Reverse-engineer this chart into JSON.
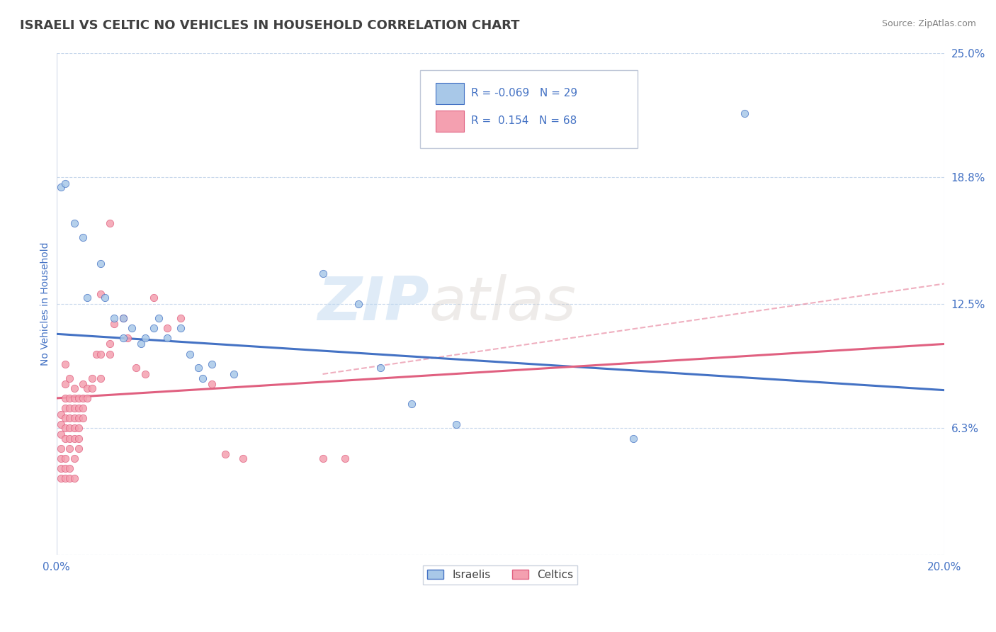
{
  "title": "ISRAELI VS CELTIC NO VEHICLES IN HOUSEHOLD CORRELATION CHART",
  "source": "Source: ZipAtlas.com",
  "ylabel": "No Vehicles in Household",
  "xlim": [
    0.0,
    0.2
  ],
  "ylim": [
    0.0,
    0.25
  ],
  "ytick_values": [
    0.0,
    0.063,
    0.125,
    0.188,
    0.25
  ],
  "ytick_labels": [
    "",
    "6.3%",
    "12.5%",
    "18.8%",
    "25.0%"
  ],
  "legend_r_israeli": "-0.069",
  "legend_n_israeli": "29",
  "legend_r_celtic": "0.154",
  "legend_n_celtic": "68",
  "israeli_color": "#a8c8e8",
  "celtic_color": "#f4a0b0",
  "israeli_line_color": "#4472c4",
  "celtic_line_color": "#e06080",
  "title_color": "#404040",
  "axis_label_color": "#4472c4",
  "tick_label_color": "#4472c4",
  "source_color": "#808080",
  "watermark_zip": "ZIP",
  "watermark_atlas": "atlas",
  "background_color": "#ffffff",
  "israelis_scatter": [
    [
      0.001,
      0.183
    ],
    [
      0.002,
      0.185
    ],
    [
      0.004,
      0.165
    ],
    [
      0.006,
      0.158
    ],
    [
      0.007,
      0.128
    ],
    [
      0.01,
      0.145
    ],
    [
      0.011,
      0.128
    ],
    [
      0.013,
      0.118
    ],
    [
      0.015,
      0.118
    ],
    [
      0.015,
      0.108
    ],
    [
      0.017,
      0.113
    ],
    [
      0.019,
      0.105
    ],
    [
      0.02,
      0.108
    ],
    [
      0.022,
      0.113
    ],
    [
      0.023,
      0.118
    ],
    [
      0.025,
      0.108
    ],
    [
      0.028,
      0.113
    ],
    [
      0.03,
      0.1
    ],
    [
      0.032,
      0.093
    ],
    [
      0.033,
      0.088
    ],
    [
      0.035,
      0.095
    ],
    [
      0.04,
      0.09
    ],
    [
      0.06,
      0.14
    ],
    [
      0.068,
      0.125
    ],
    [
      0.073,
      0.093
    ],
    [
      0.08,
      0.075
    ],
    [
      0.09,
      0.065
    ],
    [
      0.13,
      0.058
    ],
    [
      0.155,
      0.22
    ]
  ],
  "celtics_scatter": [
    [
      0.001,
      0.07
    ],
    [
      0.001,
      0.065
    ],
    [
      0.001,
      0.06
    ],
    [
      0.001,
      0.053
    ],
    [
      0.001,
      0.048
    ],
    [
      0.001,
      0.043
    ],
    [
      0.001,
      0.038
    ],
    [
      0.002,
      0.095
    ],
    [
      0.002,
      0.085
    ],
    [
      0.002,
      0.078
    ],
    [
      0.002,
      0.073
    ],
    [
      0.002,
      0.068
    ],
    [
      0.002,
      0.063
    ],
    [
      0.002,
      0.058
    ],
    [
      0.002,
      0.048
    ],
    [
      0.002,
      0.043
    ],
    [
      0.002,
      0.038
    ],
    [
      0.003,
      0.088
    ],
    [
      0.003,
      0.078
    ],
    [
      0.003,
      0.073
    ],
    [
      0.003,
      0.068
    ],
    [
      0.003,
      0.063
    ],
    [
      0.003,
      0.058
    ],
    [
      0.003,
      0.053
    ],
    [
      0.003,
      0.043
    ],
    [
      0.003,
      0.038
    ],
    [
      0.004,
      0.083
    ],
    [
      0.004,
      0.078
    ],
    [
      0.004,
      0.073
    ],
    [
      0.004,
      0.068
    ],
    [
      0.004,
      0.063
    ],
    [
      0.004,
      0.058
    ],
    [
      0.004,
      0.048
    ],
    [
      0.004,
      0.038
    ],
    [
      0.005,
      0.078
    ],
    [
      0.005,
      0.073
    ],
    [
      0.005,
      0.068
    ],
    [
      0.005,
      0.063
    ],
    [
      0.005,
      0.058
    ],
    [
      0.005,
      0.053
    ],
    [
      0.006,
      0.085
    ],
    [
      0.006,
      0.078
    ],
    [
      0.006,
      0.073
    ],
    [
      0.006,
      0.068
    ],
    [
      0.007,
      0.083
    ],
    [
      0.007,
      0.078
    ],
    [
      0.008,
      0.088
    ],
    [
      0.008,
      0.083
    ],
    [
      0.009,
      0.1
    ],
    [
      0.01,
      0.13
    ],
    [
      0.01,
      0.1
    ],
    [
      0.01,
      0.088
    ],
    [
      0.012,
      0.165
    ],
    [
      0.012,
      0.105
    ],
    [
      0.012,
      0.1
    ],
    [
      0.013,
      0.115
    ],
    [
      0.015,
      0.118
    ],
    [
      0.016,
      0.108
    ],
    [
      0.018,
      0.093
    ],
    [
      0.02,
      0.09
    ],
    [
      0.022,
      0.128
    ],
    [
      0.025,
      0.113
    ],
    [
      0.028,
      0.118
    ],
    [
      0.035,
      0.085
    ],
    [
      0.038,
      0.05
    ],
    [
      0.042,
      0.048
    ],
    [
      0.06,
      0.048
    ],
    [
      0.065,
      0.048
    ]
  ]
}
